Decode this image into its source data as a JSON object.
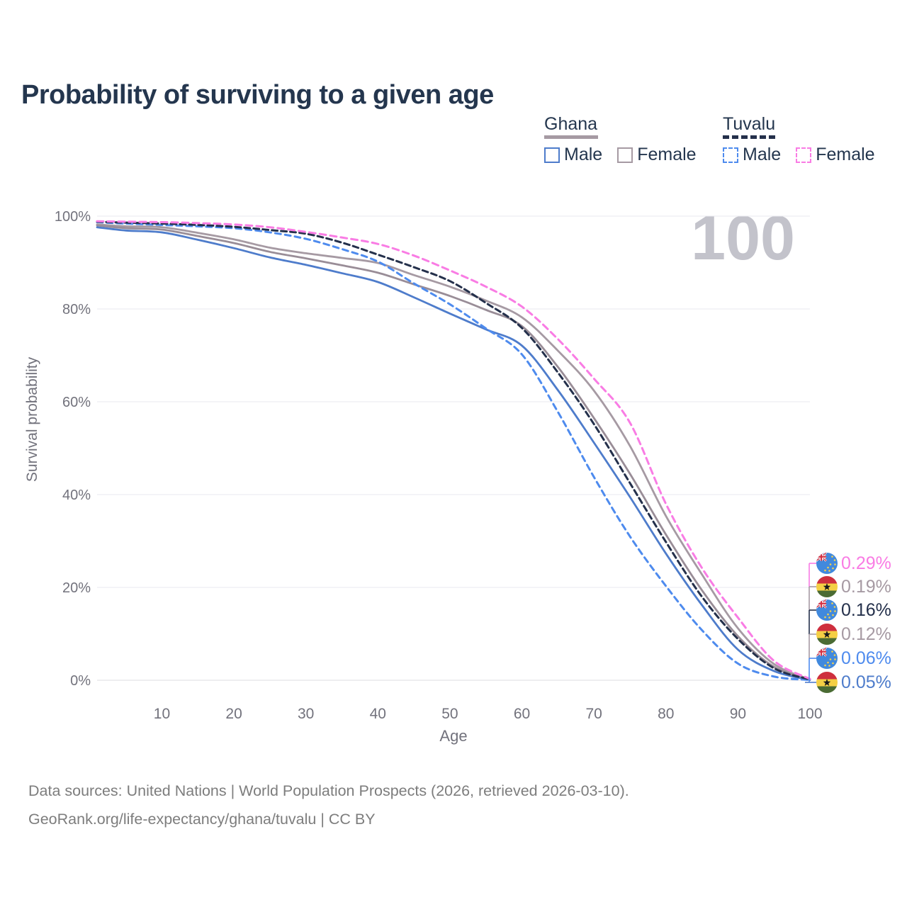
{
  "title": "Probability of surviving to a given age",
  "watermark": "100",
  "legend": {
    "groups": [
      {
        "country": "Ghana",
        "items": [
          {
            "label": "Male"
          },
          {
            "label": "Female"
          }
        ]
      },
      {
        "country": "Tuvalu",
        "items": [
          {
            "label": "Male"
          },
          {
            "label": "Female"
          }
        ]
      }
    ]
  },
  "chart_data": {
    "type": "line",
    "title": "Probability of surviving to a given age",
    "xlabel": "Age",
    "ylabel": "Survival probability",
    "xlim": [
      1,
      100
    ],
    "ylim": [
      0,
      100
    ],
    "grid": "horizontal",
    "legend_position": "top-right",
    "hovered_age": 100,
    "x_ticks": [
      {
        "value": 10,
        "label": "10"
      },
      {
        "value": 20,
        "label": "20"
      },
      {
        "value": 30,
        "label": "30"
      },
      {
        "value": 40,
        "label": "40"
      },
      {
        "value": 50,
        "label": "50"
      },
      {
        "value": 60,
        "label": "60"
      },
      {
        "value": 70,
        "label": "70"
      },
      {
        "value": 80,
        "label": "80"
      },
      {
        "value": 90,
        "label": "90"
      },
      {
        "value": 100,
        "label": "100"
      }
    ],
    "y_ticks": [
      {
        "value": 0,
        "label": "0%"
      },
      {
        "value": 20,
        "label": "20%"
      },
      {
        "value": 40,
        "label": "40%"
      },
      {
        "value": 60,
        "label": "60%"
      },
      {
        "value": 80,
        "label": "80%"
      },
      {
        "value": 100,
        "label": "100%"
      }
    ],
    "series": [
      {
        "id": "ghana-female",
        "country": "Ghana",
        "sex": "Female",
        "style": "solid",
        "color": "#a69aa3",
        "width": 2.8,
        "dash": null,
        "points": [
          [
            1,
            98.2
          ],
          [
            5,
            97.8
          ],
          [
            10,
            97.6
          ],
          [
            15,
            96.4
          ],
          [
            20,
            95.0
          ],
          [
            25,
            93.2
          ],
          [
            30,
            92.0
          ],
          [
            35,
            91.0
          ],
          [
            40,
            89.9
          ],
          [
            45,
            87.3
          ],
          [
            50,
            84.8
          ],
          [
            55,
            81.8
          ],
          [
            60,
            78.2
          ],
          [
            65,
            71.0
          ],
          [
            70,
            62.4
          ],
          [
            75,
            50.5
          ],
          [
            80,
            35.4
          ],
          [
            85,
            22.8
          ],
          [
            90,
            11.2
          ],
          [
            95,
            3.5
          ],
          [
            100,
            0.19
          ]
        ]
      },
      {
        "id": "ghana-both",
        "country": "Ghana",
        "sex": "Both",
        "style": "solid",
        "color": "#998d97",
        "width": 2.8,
        "dash": null,
        "points": [
          [
            1,
            98.0
          ],
          [
            5,
            97.4
          ],
          [
            10,
            97.1
          ],
          [
            15,
            95.7
          ],
          [
            20,
            94.2
          ],
          [
            25,
            92.3
          ],
          [
            30,
            90.9
          ],
          [
            35,
            89.4
          ],
          [
            40,
            87.8
          ],
          [
            45,
            85.3
          ],
          [
            50,
            82.8
          ],
          [
            55,
            79.8
          ],
          [
            60,
            76.3
          ],
          [
            65,
            67.5
          ],
          [
            70,
            56.5
          ],
          [
            75,
            44.5
          ],
          [
            80,
            31.4
          ],
          [
            85,
            19.4
          ],
          [
            90,
            9.5
          ],
          [
            95,
            2.9
          ],
          [
            100,
            0.12
          ]
        ]
      },
      {
        "id": "ghana-male",
        "country": "Ghana",
        "sex": "Male",
        "style": "solid",
        "color": "#4e7ccb",
        "width": 2.8,
        "dash": null,
        "points": [
          [
            1,
            97.6
          ],
          [
            5,
            96.9
          ],
          [
            10,
            96.5
          ],
          [
            15,
            94.9
          ],
          [
            20,
            93.1
          ],
          [
            25,
            91.1
          ],
          [
            30,
            89.5
          ],
          [
            35,
            87.7
          ],
          [
            40,
            85.8
          ],
          [
            45,
            82.5
          ],
          [
            50,
            79.0
          ],
          [
            55,
            75.6
          ],
          [
            60,
            72.1
          ],
          [
            65,
            62.5
          ],
          [
            70,
            51.2
          ],
          [
            75,
            39.5
          ],
          [
            80,
            27.3
          ],
          [
            85,
            16.2
          ],
          [
            90,
            6.6
          ],
          [
            95,
            2.0
          ],
          [
            100,
            0.05
          ]
        ]
      },
      {
        "id": "tuvalu-male",
        "country": "Tuvalu",
        "sex": "Male",
        "style": "dashed",
        "color": "#4e8bee",
        "width": 3,
        "dash": "8 6",
        "points": [
          [
            1,
            98.7
          ],
          [
            5,
            98.4
          ],
          [
            10,
            98.1
          ],
          [
            15,
            97.8
          ],
          [
            20,
            97.4
          ],
          [
            25,
            96.5
          ],
          [
            30,
            95.1
          ],
          [
            35,
            92.9
          ],
          [
            40,
            90.2
          ],
          [
            45,
            85.5
          ],
          [
            50,
            81.0
          ],
          [
            55,
            75.8
          ],
          [
            60,
            70.2
          ],
          [
            65,
            57.8
          ],
          [
            70,
            43.8
          ],
          [
            75,
            31.0
          ],
          [
            80,
            20.3
          ],
          [
            85,
            10.8
          ],
          [
            90,
            3.6
          ],
          [
            95,
            0.8
          ],
          [
            100,
            0.06
          ]
        ]
      },
      {
        "id": "tuvalu-both",
        "country": "Tuvalu",
        "sex": "Both",
        "style": "dashed",
        "color": "#24304b",
        "width": 3,
        "dash": "8 5",
        "points": [
          [
            1,
            98.8
          ],
          [
            5,
            98.6
          ],
          [
            10,
            98.4
          ],
          [
            15,
            98.1
          ],
          [
            20,
            97.7
          ],
          [
            25,
            97.0
          ],
          [
            30,
            96.2
          ],
          [
            35,
            94.3
          ],
          [
            40,
            91.7
          ],
          [
            45,
            89.0
          ],
          [
            50,
            86.0
          ],
          [
            55,
            81.3
          ],
          [
            60,
            75.9
          ],
          [
            65,
            66.3
          ],
          [
            70,
            55.2
          ],
          [
            75,
            42.5
          ],
          [
            80,
            29.8
          ],
          [
            85,
            18.0
          ],
          [
            90,
            8.9
          ],
          [
            95,
            2.6
          ],
          [
            100,
            0.16
          ]
        ]
      },
      {
        "id": "tuvalu-female",
        "country": "Tuvalu",
        "sex": "Female",
        "style": "dashed",
        "color": "#f97ce4",
        "width": 3,
        "dash": "9 6",
        "points": [
          [
            1,
            98.9
          ],
          [
            5,
            98.8
          ],
          [
            10,
            98.7
          ],
          [
            15,
            98.5
          ],
          [
            20,
            98.2
          ],
          [
            25,
            97.6
          ],
          [
            30,
            96.6
          ],
          [
            35,
            95.4
          ],
          [
            40,
            94.0
          ],
          [
            45,
            91.5
          ],
          [
            50,
            88.3
          ],
          [
            55,
            84.8
          ],
          [
            60,
            80.5
          ],
          [
            65,
            73.5
          ],
          [
            70,
            65.0
          ],
          [
            75,
            55.5
          ],
          [
            80,
            38.0
          ],
          [
            85,
            24.2
          ],
          [
            90,
            13.5
          ],
          [
            95,
            4.2
          ],
          [
            100,
            0.29
          ]
        ]
      }
    ],
    "end_labels": [
      {
        "series": "tuvalu-female",
        "country": "Tuvalu",
        "value": "0.29%",
        "color": "#f97ce4"
      },
      {
        "series": "ghana-female",
        "country": "Ghana",
        "value": "0.19%",
        "color": "#a69aa3"
      },
      {
        "series": "tuvalu-both",
        "country": "Tuvalu",
        "value": "0.16%",
        "color": "#24304b"
      },
      {
        "series": "ghana-both",
        "country": "Ghana",
        "value": "0.12%",
        "color": "#a69aa3"
      },
      {
        "series": "tuvalu-male",
        "country": "Tuvalu",
        "value": "0.06%",
        "color": "#4e8bee"
      },
      {
        "series": "ghana-male",
        "country": "Ghana",
        "value": "0.05%",
        "color": "#4e7ccb"
      }
    ]
  },
  "footer": {
    "line1": "Data sources: United Nations | World Population Prospects (2026, retrieved 2026-03-10).",
    "line2": "GeoRank.org/life-expectancy/ghana/tuvalu | CC BY"
  }
}
